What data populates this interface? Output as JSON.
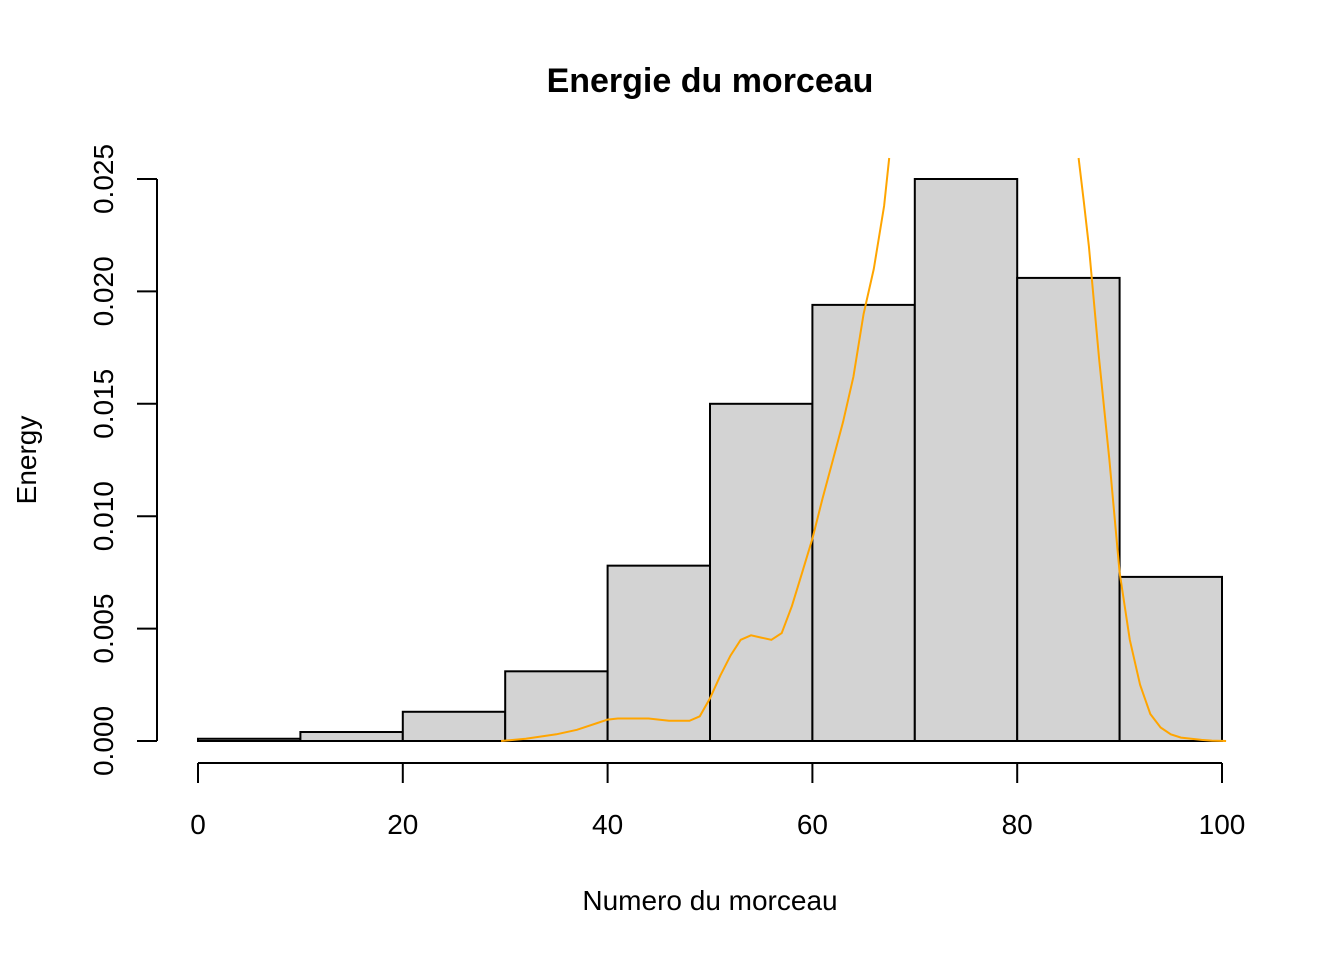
{
  "chart_data": {
    "type": "bar",
    "title": "Energie du morceau",
    "xlabel": "Numero du morceau",
    "ylabel": "Energy",
    "xlim": [
      0,
      100
    ],
    "ylim": [
      0,
      0.025
    ],
    "x_ticks": [
      0,
      20,
      40,
      60,
      80,
      100
    ],
    "x_tick_labels": [
      "0",
      "20",
      "40",
      "60",
      "80",
      "100"
    ],
    "y_ticks": [
      0,
      0.005,
      0.01,
      0.015,
      0.02,
      0.025
    ],
    "y_tick_labels": [
      "0.000",
      "0.005",
      "0.010",
      "0.015",
      "0.020",
      "0.025"
    ],
    "grid": false,
    "bins": [
      {
        "start": 0,
        "end": 10,
        "density": 0.0001
      },
      {
        "start": 10,
        "end": 20,
        "density": 0.0004
      },
      {
        "start": 20,
        "end": 30,
        "density": 0.0013
      },
      {
        "start": 30,
        "end": 40,
        "density": 0.0031
      },
      {
        "start": 40,
        "end": 50,
        "density": 0.0078
      },
      {
        "start": 50,
        "end": 60,
        "density": 0.015
      },
      {
        "start": 60,
        "end": 70,
        "density": 0.0194
      },
      {
        "start": 70,
        "end": 80,
        "density": 0.025
      },
      {
        "start": 80,
        "end": 90,
        "density": 0.0206
      },
      {
        "start": 90,
        "end": 100,
        "density": 0.0073
      }
    ],
    "density_curve": {
      "color": "#ffa500",
      "segments": [
        {
          "x": [
            29.6,
            32,
            35,
            37,
            39,
            40,
            41,
            42,
            44,
            46,
            48,
            49,
            50,
            51,
            52,
            53,
            54,
            55,
            56,
            57,
            58,
            59,
            60,
            61,
            62,
            63,
            64,
            65,
            66,
            67,
            67.5
          ],
          "y": [
            0.0,
            0.0001,
            0.0003,
            0.0005,
            0.0008,
            0.00095,
            0.001,
            0.001,
            0.001,
            0.0009,
            0.0009,
            0.0011,
            0.0019,
            0.0029,
            0.0038,
            0.0045,
            0.0047,
            0.0046,
            0.0045,
            0.0048,
            0.006,
            0.0075,
            0.009,
            0.0108,
            0.0125,
            0.0142,
            0.0162,
            0.019,
            0.021,
            0.0238,
            0.0262
          ]
        },
        {
          "x": [
            86.0,
            86.5,
            87,
            88,
            89,
            90,
            91,
            92,
            93,
            94,
            95,
            96,
            97,
            98,
            99,
            100.4
          ],
          "y": [
            0.0262,
            0.024,
            0.022,
            0.017,
            0.0125,
            0.0075,
            0.0045,
            0.0025,
            0.0012,
            0.0006,
            0.0003,
            0.00015,
            0.0001,
            5e-05,
            2e-05,
            0.0
          ]
        }
      ]
    }
  }
}
